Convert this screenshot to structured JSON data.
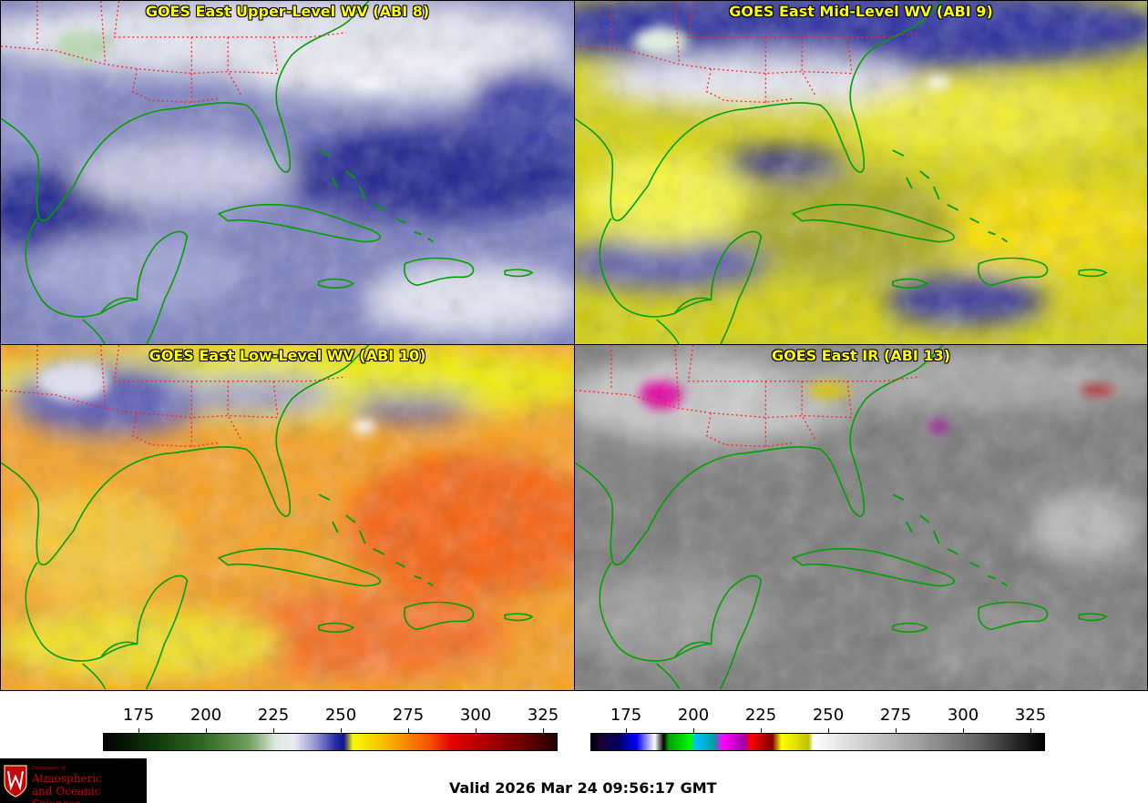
{
  "panels": [
    {
      "title": "GOES East Upper-Level WV (ABI 8)"
    },
    {
      "title": "GOES East Mid-Level WV (ABI 9)"
    },
    {
      "title": "GOES East Low-Level WV (ABI 10)"
    },
    {
      "title": "GOES East IR (ABI 13)"
    }
  ],
  "colorbars": {
    "wv": {
      "ticks": [
        "175",
        "200",
        "225",
        "250",
        "275",
        "300",
        "325"
      ]
    },
    "ir": {
      "ticks": [
        "175",
        "200",
        "225",
        "250",
        "275",
        "300",
        "325"
      ]
    }
  },
  "logo": {
    "dept": "Department of",
    "line1": "Atmospheric",
    "line2": "and Oceanic Sciences"
  },
  "footer": {
    "valid": "Valid 2026 Mar 24 09:56:17 GMT"
  },
  "colors": {
    "title": "#ffff00",
    "coastline": "#00a000",
    "state_border": "#ff2020"
  }
}
